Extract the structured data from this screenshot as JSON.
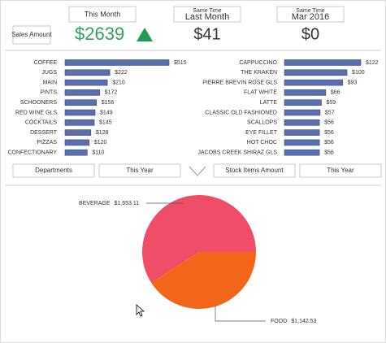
{
  "sales_box": "Sales Amount",
  "kpis": [
    {
      "header": "This Month",
      "value": "$2639",
      "trend": "up"
    },
    {
      "header_small": "Same Time",
      "header": "Last Month",
      "value": "$41"
    },
    {
      "header_small": "Same Time",
      "header": "Mar 2016",
      "value": "$0"
    }
  ],
  "filters": [
    "Departments",
    "This Year",
    "Stock Items Amount",
    "This Year"
  ],
  "chart_data": [
    {
      "type": "bar",
      "orientation": "horizontal",
      "color": "#5b6fae",
      "categories": [
        "COFFEE",
        "JUGS",
        "MAIN",
        "PINTS",
        "SCHOONERS",
        "RED WINE GLS",
        "COCKTAILS",
        "DESSERT",
        "PIZZAS",
        "CONFECTIONARY"
      ],
      "values": [
        515,
        222,
        210,
        172,
        156,
        149,
        145,
        128,
        120,
        110
      ],
      "value_labels": [
        "$515",
        "$222",
        "$210",
        "$172",
        "$156",
        "$149",
        "$145",
        "$128",
        "$120",
        "$110"
      ]
    },
    {
      "type": "bar",
      "orientation": "horizontal",
      "color": "#5b6fae",
      "categories": [
        "CAPPUCCINO",
        "THE KRAKEN",
        "PIERRE BREVIN ROSE GLS",
        "FLAT WHITE",
        "LATTE",
        "CLASSIC OLD FASHIONED",
        "SCALLOPS",
        "EYE FILLET",
        "HOT CHOC",
        "JACOBS CREEK SHIRAZ GLS"
      ],
      "values": [
        122,
        100,
        93,
        66,
        59,
        57,
        56,
        56,
        56,
        56
      ],
      "value_labels": [
        "$122",
        "$100",
        "$93",
        "$66",
        "$59",
        "$57",
        "$56",
        "$56",
        "$56",
        "$56"
      ]
    },
    {
      "type": "pie",
      "categories": [
        "BEVERAGE",
        "FOOD"
      ],
      "values": [
        1653.11,
        1142.53
      ],
      "value_labels": [
        "$1,653.11",
        "$1,142.53"
      ],
      "colors": [
        "#ef4d68",
        "#f2661a"
      ]
    }
  ]
}
